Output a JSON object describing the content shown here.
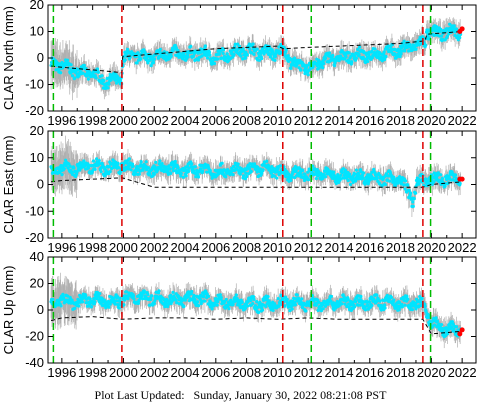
{
  "footer": {
    "label": "Plot Last Updated:",
    "timestamp": "Sunday, January 30, 2022 08:21:08 PST"
  },
  "colors": {
    "data": "#00e5ff",
    "error_bars": "#b0b0b0",
    "model": "#000000",
    "recent": "#ff0000",
    "event_red": "#dd0000",
    "event_green": "#00bb00"
  },
  "chart_data": [
    {
      "type": "scatter",
      "ylabel": "CLAR North (mm)",
      "xlim": [
        1995.1,
        2022.9
      ],
      "ylim": [
        -20,
        20
      ],
      "yticks": [
        -20,
        -10,
        0,
        10,
        20
      ],
      "xticks": [
        1996,
        1998,
        2000,
        2002,
        2004,
        2006,
        2008,
        2010,
        2012,
        2014,
        2016,
        2018,
        2020,
        2022
      ],
      "series": [
        {
          "kind": "data",
          "x": [
            1995.3,
            1996.0,
            1997.0,
            1998.0,
            1998.8,
            1999.9,
            1999.95,
            2001.0,
            2002.0,
            2003.0,
            2004.0,
            2005.0,
            2006.0,
            2007.0,
            2008.0,
            2009.0,
            2010.0,
            2010.4,
            2011.0,
            2012.0,
            2013.0,
            2014.0,
            2015.0,
            2016.0,
            2017.0,
            2018.0,
            2019.0,
            2019.6,
            2019.7,
            2020.5,
            2021.0,
            2021.9
          ],
          "y": [
            -2,
            -3,
            -5,
            -6,
            -9,
            -8,
            0,
            1,
            0,
            2,
            1,
            2,
            0,
            2,
            3,
            2,
            2,
            3,
            -2,
            -4,
            -1,
            0,
            1,
            1,
            2,
            3,
            5,
            6,
            10,
            9,
            10,
            10
          ]
        },
        {
          "kind": "model",
          "x": [
            1995.3,
            1996.0,
            1997.0,
            1998.0,
            1999.0,
            1999.9,
            1999.95,
            2002.0,
            2004.0,
            2006.0,
            2008.0,
            2010.0,
            2010.4,
            2012.0,
            2014.0,
            2016.0,
            2018.0,
            2019.6,
            2019.7,
            2022.0
          ],
          "y": [
            -3,
            -3.5,
            -4,
            -4.5,
            -5,
            -5.5,
            0.5,
            1.5,
            2.5,
            3.5,
            4,
            4.5,
            3.5,
            4,
            4.5,
            5,
            5.5,
            6.5,
            9,
            10
          ]
        }
      ],
      "recent_x": [
        2021.85,
        2022.0
      ],
      "recent_y": [
        10,
        11
      ],
      "events": [
        {
          "x": 1995.45,
          "color": "green"
        },
        {
          "x": 1999.9,
          "color": "red"
        },
        {
          "x": 2010.35,
          "color": "red"
        },
        {
          "x": 2012.2,
          "color": "green"
        },
        {
          "x": 2019.45,
          "color": "red"
        },
        {
          "x": 2019.95,
          "color": "green"
        }
      ]
    },
    {
      "type": "scatter",
      "ylabel": "CLAR East (mm)",
      "xlim": [
        1995.1,
        2022.9
      ],
      "ylim": [
        -20,
        20
      ],
      "yticks": [
        -20,
        -10,
        0,
        10,
        20
      ],
      "xticks": [
        1996,
        1998,
        2000,
        2002,
        2004,
        2006,
        2008,
        2010,
        2012,
        2014,
        2016,
        2018,
        2020,
        2022
      ],
      "series": [
        {
          "kind": "data",
          "x": [
            1995.3,
            1996.0,
            1997.0,
            1998.0,
            1999.0,
            1999.9,
            2001.0,
            2002.0,
            2003.0,
            2004.0,
            2005.0,
            2006.0,
            2007.0,
            2008.0,
            2009.0,
            2010.0,
            2011.0,
            2012.0,
            2013.0,
            2014.0,
            2015.0,
            2016.0,
            2017.0,
            2018.0,
            2018.8,
            2019.0,
            2019.4,
            2020.0,
            2021.0,
            2021.9
          ],
          "y": [
            5,
            6,
            6,
            7,
            6,
            7,
            6,
            6,
            6,
            5,
            6,
            5,
            5,
            5,
            6,
            5,
            4,
            4,
            4,
            3,
            3,
            3,
            2,
            2,
            -6,
            0,
            1,
            2,
            2,
            2
          ]
        },
        {
          "kind": "model",
          "x": [
            1995.3,
            1996.0,
            1998.0,
            1999.9,
            2002.0,
            2004.0,
            2006.0,
            2008.0,
            2010.0,
            2012.0,
            2014.0,
            2016.0,
            2018.0,
            2019.45,
            2020.0,
            2022.0
          ],
          "y": [
            1,
            1.5,
            2,
            2.5,
            -1,
            -1,
            -1,
            -1,
            -1,
            -1,
            -1,
            -1,
            -1,
            -1,
            0,
            1
          ]
        }
      ],
      "recent_x": [
        2021.85,
        2022.0
      ],
      "recent_y": [
        2,
        2
      ],
      "events": [
        {
          "x": 1995.45,
          "color": "green"
        },
        {
          "x": 1999.9,
          "color": "red"
        },
        {
          "x": 2010.35,
          "color": "red"
        },
        {
          "x": 2012.2,
          "color": "green"
        },
        {
          "x": 2019.45,
          "color": "red"
        },
        {
          "x": 2019.95,
          "color": "green"
        }
      ]
    },
    {
      "type": "scatter",
      "ylabel": "CLAR Up (mm)",
      "xlim": [
        1995.1,
        2022.9
      ],
      "ylim": [
        -40,
        40
      ],
      "yticks": [
        -40,
        -20,
        0,
        20,
        40
      ],
      "xticks": [
        1996,
        1998,
        2000,
        2002,
        2004,
        2006,
        2008,
        2010,
        2012,
        2014,
        2016,
        2018,
        2020,
        2022
      ],
      "series": [
        {
          "kind": "data",
          "x": [
            1995.3,
            1996.0,
            1997.0,
            1998.0,
            1999.0,
            1999.9,
            2001.0,
            2002.0,
            2003.0,
            2004.0,
            2005.0,
            2006.0,
            2007.0,
            2008.0,
            2009.0,
            2010.0,
            2011.0,
            2012.0,
            2013.0,
            2014.0,
            2015.0,
            2016.0,
            2017.0,
            2018.0,
            2019.0,
            2019.5,
            2020.0,
            2021.0,
            2021.9
          ],
          "y": [
            5,
            8,
            6,
            8,
            6,
            8,
            10,
            9,
            8,
            8,
            9,
            6,
            6,
            5,
            4,
            5,
            6,
            5,
            5,
            6,
            5,
            6,
            6,
            5,
            5,
            3,
            -10,
            -15,
            -15
          ]
        },
        {
          "kind": "model",
          "x": [
            1995.3,
            1996.0,
            1998.0,
            1999.9,
            2002.0,
            2004.0,
            2006.0,
            2008.0,
            2010.0,
            2012.0,
            2014.0,
            2016.0,
            2018.0,
            2019.45,
            2020.0,
            2022.0
          ],
          "y": [
            -8,
            -6,
            -5,
            -7,
            -6,
            -6,
            -7,
            -6,
            -7,
            -6,
            -7,
            -7,
            -7,
            -7,
            -18,
            -16
          ]
        }
      ],
      "recent_x": [
        2021.85,
        2022.0
      ],
      "recent_y": [
        -18,
        -15
      ],
      "events": [
        {
          "x": 1995.45,
          "color": "green"
        },
        {
          "x": 1999.9,
          "color": "red"
        },
        {
          "x": 2010.35,
          "color": "red"
        },
        {
          "x": 2012.2,
          "color": "green"
        },
        {
          "x": 2019.45,
          "color": "red"
        },
        {
          "x": 2019.95,
          "color": "green"
        }
      ]
    }
  ]
}
